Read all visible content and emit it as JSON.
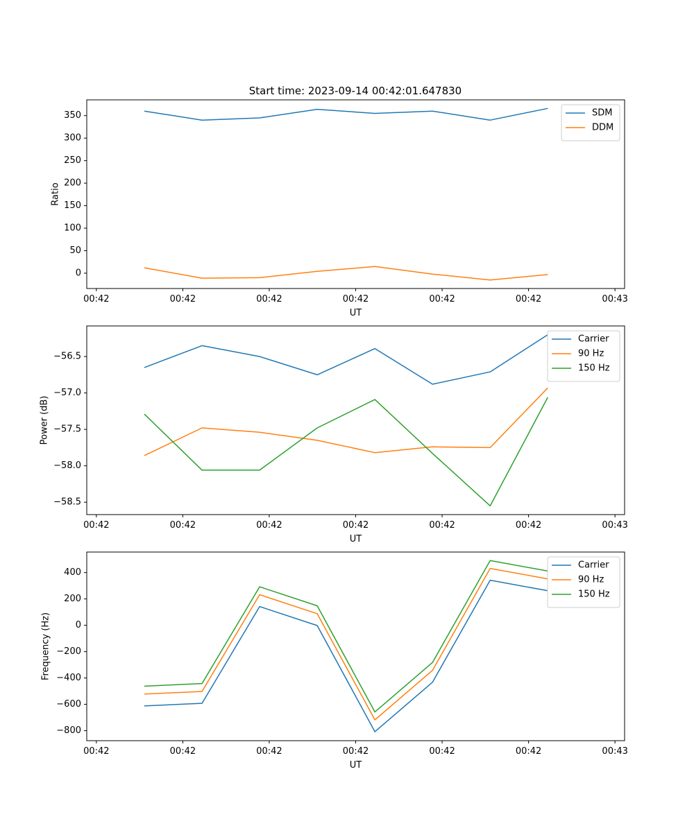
{
  "title": "Start time: 2023-09-14 00:42:01.647830",
  "colors": {
    "blue": "#1f77b4",
    "orange": "#ff7f0e",
    "green": "#2ca02c"
  },
  "chart_data": [
    {
      "type": "line",
      "xlabel": "UT",
      "ylabel": "Ratio",
      "x_tick_labels": [
        "00:42",
        "00:42",
        "00:42",
        "00:42",
        "00:42",
        "00:42",
        "00:43"
      ],
      "x": [
        0.6,
        1.2,
        1.8,
        2.4,
        3.0,
        3.6,
        4.2,
        4.8
      ],
      "xlim": [
        0,
        5.6
      ],
      "xticks": [
        0.1,
        1.0,
        1.9,
        2.8,
        3.7,
        4.6,
        5.5
      ],
      "ylim": [
        -34,
        385
      ],
      "yticks": [
        0,
        50,
        100,
        150,
        200,
        250,
        300,
        350
      ],
      "y_tick_labels": [
        "0",
        "50",
        "100",
        "150",
        "200",
        "250",
        "300",
        "350"
      ],
      "series": [
        {
          "name": "SDM",
          "color": "#1f77b4",
          "values": [
            360,
            340,
            345,
            364,
            355,
            360,
            340,
            366
          ]
        },
        {
          "name": "DDM",
          "color": "#ff7f0e",
          "values": [
            12,
            -11,
            -10,
            4,
            15,
            -2,
            -15,
            -3
          ]
        }
      ]
    },
    {
      "type": "line",
      "xlabel": "UT",
      "ylabel": "Power (dB)",
      "x_tick_labels": [
        "00:42",
        "00:42",
        "00:42",
        "00:42",
        "00:42",
        "00:42",
        "00:43"
      ],
      "x": [
        0.6,
        1.2,
        1.8,
        2.4,
        3.0,
        3.6,
        4.2,
        4.8
      ],
      "xlim": [
        0,
        5.6
      ],
      "xticks": [
        0.1,
        1.0,
        1.9,
        2.8,
        3.7,
        4.6,
        5.5
      ],
      "ylim": [
        -58.67,
        -56.08
      ],
      "yticks": [
        -56.5,
        -57.0,
        -57.5,
        -58.0,
        -58.5
      ],
      "y_tick_labels": [
        "−56.5",
        "−57.0",
        "−57.5",
        "−58.0",
        "−58.5"
      ],
      "series": [
        {
          "name": "Carrier",
          "color": "#1f77b4",
          "values": [
            -56.65,
            -56.35,
            -56.5,
            -56.75,
            -56.39,
            -56.88,
            -56.71,
            -56.2
          ]
        },
        {
          "name": "90 Hz",
          "color": "#ff7f0e",
          "values": [
            -57.86,
            -57.48,
            -57.54,
            -57.65,
            -57.82,
            -57.74,
            -57.75,
            -56.93
          ]
        },
        {
          "name": "150 Hz",
          "color": "#2ca02c",
          "values": [
            -57.29,
            -58.06,
            -58.06,
            -57.48,
            -57.09,
            -57.83,
            -58.55,
            -57.06
          ]
        }
      ]
    },
    {
      "type": "line",
      "xlabel": "UT",
      "ylabel": "Frequency (Hz)",
      "x_tick_labels": [
        "00:42",
        "00:42",
        "00:42",
        "00:42",
        "00:42",
        "00:42",
        "00:43"
      ],
      "x": [
        0.6,
        1.2,
        1.8,
        2.4,
        3.0,
        3.6,
        4.2,
        4.8
      ],
      "xlim": [
        0,
        5.6
      ],
      "xticks": [
        0.1,
        1.0,
        1.9,
        2.8,
        3.7,
        4.6,
        5.5
      ],
      "ylim": [
        -876,
        556
      ],
      "yticks": [
        400,
        200,
        0,
        -200,
        -400,
        -600,
        -800
      ],
      "y_tick_labels": [
        "400",
        "200",
        "0",
        "−200",
        "−400",
        "−600",
        "−800"
      ],
      "series": [
        {
          "name": "Carrier",
          "color": "#1f77b4",
          "values": [
            -612,
            -592,
            142,
            -2,
            -808,
            -432,
            342,
            262
          ]
        },
        {
          "name": "90 Hz",
          "color": "#ff7f0e",
          "values": [
            -522,
            -502,
            232,
            88,
            -718,
            -342,
            432,
            352
          ]
        },
        {
          "name": "150 Hz",
          "color": "#2ca02c",
          "values": [
            -462,
            -442,
            292,
            148,
            -658,
            -282,
            492,
            412
          ]
        }
      ]
    }
  ]
}
